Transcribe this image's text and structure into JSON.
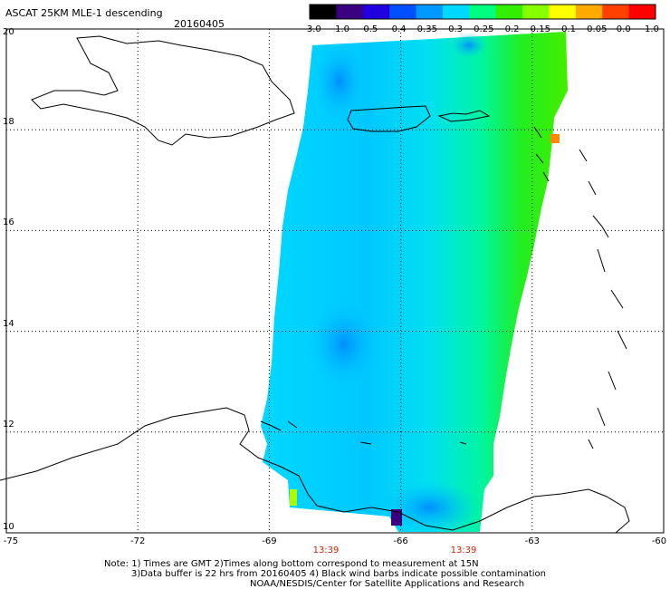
{
  "title": "ASCAT 25KM MLE-1 descending",
  "date": "20160405",
  "colorbar": {
    "labels": [
      "-3.0",
      "-1.0",
      "-0.5",
      "-0.4",
      "-0.35",
      "-0.3",
      "-0.25",
      "-0.2",
      "-0.15",
      "-0.1",
      "-0.05",
      "0.0",
      "1.0"
    ],
    "colors": [
      "#000000",
      "#3a0080",
      "#2000e0",
      "#0050ff",
      "#0099ff",
      "#00d8ff",
      "#00ff80",
      "#33ee00",
      "#88ff00",
      "#ffff00",
      "#ffaa00",
      "#ff4000",
      "#ff0000"
    ]
  },
  "axes": {
    "lat_ticks": [
      "20",
      "18",
      "16",
      "14",
      "12",
      "10"
    ],
    "lon_ticks": [
      "-75",
      "-72",
      "-69",
      "-66",
      "-63",
      "-60"
    ],
    "times": [
      "13:39",
      "13:39"
    ]
  },
  "notes": [
    "Note: 1) Times are GMT 2)Times along bottom correspond to measurement at 15N",
    "3)Data buffer is 22 hrs from 20160405 4) Black wind barbs indicate possible contamination",
    "NOAA/NESDIS/Center for Satellite Applications and Research"
  ],
  "map": {
    "lon_range": [
      -75,
      -60
    ],
    "lat_range": [
      10,
      20
    ],
    "grid": "dotted"
  }
}
